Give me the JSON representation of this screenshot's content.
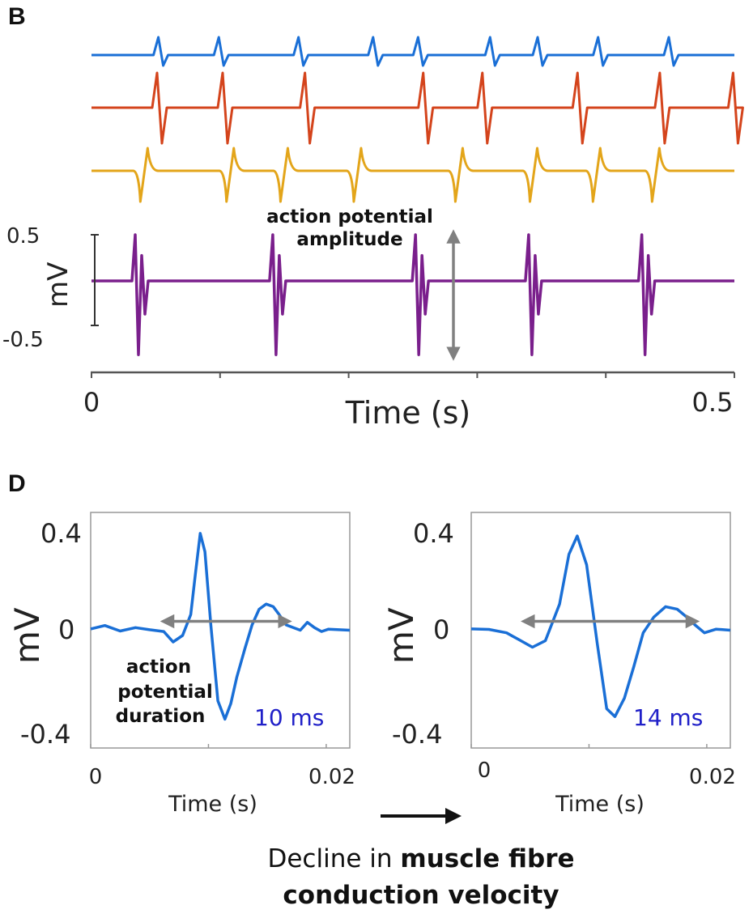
{
  "panel_b": {
    "letter": "B",
    "annotation_line1": "action potential",
    "annotation_line2": "amplitude"
  },
  "panel_d": {
    "letter": "D",
    "annotation_line1": "action",
    "annotation_line2": "potential",
    "annotation_line3": "duration"
  },
  "caption": {
    "prefix": "Decline in ",
    "bold_line1": "muscle fibre",
    "bold_line2": "conduction velocity"
  },
  "colors": {
    "blue": "#1a6fd6",
    "red": "#d4441c",
    "yellow": "#e3a51a",
    "purple": "#7a1f8c",
    "gray_arrow": "#808080",
    "duration_text": "#2020c8"
  },
  "chart_data": [
    {
      "id": "B",
      "type": "line",
      "xlabel": "Time (s)",
      "ylabel": "mV",
      "xlim": [
        0,
        0.5
      ],
      "x_ticks": [
        "0",
        "0.5"
      ],
      "scale_bar_ticks": [
        "0.5",
        "-0.5"
      ],
      "series": [
        {
          "color": "blue",
          "spikes_s": [
            0.052,
            0.099,
            0.161,
            0.219,
            0.254,
            0.31,
            0.347,
            0.394,
            0.449
          ]
        },
        {
          "color": "red",
          "spikes_s": [
            0.051,
            0.102,
            0.166,
            0.258,
            0.304,
            0.378,
            0.442,
            0.499
          ]
        },
        {
          "color": "yellow",
          "spikes_s": [
            0.038,
            0.105,
            0.147,
            0.204,
            0.283,
            0.341,
            0.39,
            0.436
          ]
        },
        {
          "color": "purple",
          "spikes_s": [
            0.034,
            0.141,
            0.252,
            0.34,
            0.428
          ],
          "peak_mV": 0.5,
          "trough_mV": -0.8
        }
      ]
    },
    {
      "id": "D-left",
      "type": "line",
      "xlabel": "Time (s)",
      "ylabel": "mV",
      "xlim": [
        0,
        0.022
      ],
      "ylim": [
        -0.45,
        0.45
      ],
      "x_ticks": [
        "0",
        "0.02"
      ],
      "y_ticks": [
        "0.4",
        "0",
        "-0.4"
      ],
      "duration_label": "10 ms",
      "duration_arrow_s": [
        0.0065,
        0.0165
      ],
      "waveform": {
        "x": [
          0,
          0.0012,
          0.0025,
          0.0038,
          0.005,
          0.0062,
          0.007,
          0.0078,
          0.0085,
          0.0089,
          0.0093,
          0.0097,
          0.0102,
          0.0108,
          0.0114,
          0.0119,
          0.0124,
          0.0131,
          0.0137,
          0.0143,
          0.0149,
          0.0155,
          0.016,
          0.0166,
          0.0172,
          0.0178,
          0.0184,
          0.019,
          0.0196,
          0.0202,
          0.022
        ],
        "y": [
          0.005,
          0.018,
          -0.003,
          0.01,
          0.002,
          -0.005,
          -0.045,
          -0.02,
          0.06,
          0.22,
          0.37,
          0.3,
          0.02,
          -0.27,
          -0.34,
          -0.28,
          -0.18,
          -0.07,
          0.02,
          0.08,
          0.1,
          0.09,
          0.06,
          0.02,
          0.01,
          0.0,
          0.03,
          0.01,
          -0.005,
          0.004,
          0.0
        ]
      }
    },
    {
      "id": "D-right",
      "type": "line",
      "xlabel": "Time (s)",
      "ylabel": "mV",
      "xlim": [
        0,
        0.022
      ],
      "ylim": [
        -0.45,
        0.45
      ],
      "x_ticks": [
        "0",
        "0.02"
      ],
      "y_ticks": [
        "0.4",
        "0",
        "-0.4"
      ],
      "duration_label": "14 ms",
      "duration_arrow_s": [
        0.0048,
        0.0188
      ],
      "waveform": {
        "x": [
          0,
          0.0015,
          0.003,
          0.0042,
          0.0052,
          0.0063,
          0.0075,
          0.0083,
          0.009,
          0.0098,
          0.0107,
          0.0115,
          0.0122,
          0.013,
          0.0138,
          0.0146,
          0.0155,
          0.0165,
          0.0175,
          0.0183,
          0.019,
          0.0198,
          0.0208,
          0.022
        ],
        "y": [
          0.005,
          0.003,
          -0.01,
          -0.04,
          -0.065,
          -0.04,
          0.1,
          0.29,
          0.36,
          0.25,
          -0.05,
          -0.3,
          -0.33,
          -0.26,
          -0.14,
          -0.01,
          0.05,
          0.09,
          0.08,
          0.05,
          0.02,
          -0.01,
          0.004,
          0.0
        ]
      }
    }
  ]
}
